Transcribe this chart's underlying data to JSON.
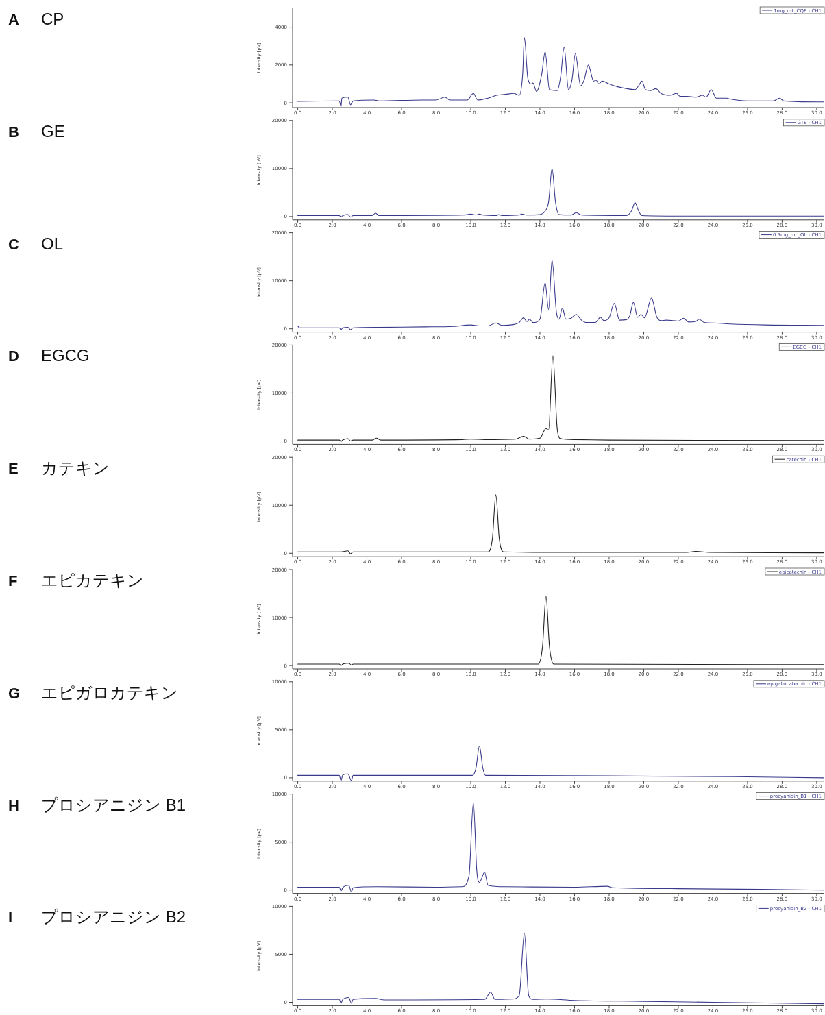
{
  "chart_data": [
    {
      "type": "line",
      "annotations": [
        "A",
        "CP"
      ],
      "ylabel": "Intensity [µV]",
      "legend": "top right",
      "xlim": [
        -0.3,
        30.4
      ],
      "ylim": [
        -250,
        5000
      ],
      "yticks": [
        0,
        2000,
        4000
      ],
      "xticks": [
        {
          "value": 0,
          "label": "0.0"
        },
        {
          "value": 2,
          "label": "2.0"
        },
        {
          "value": 4,
          "label": "4.0"
        },
        {
          "value": 6,
          "label": "6.0"
        },
        {
          "value": 8,
          "label": "8.0"
        },
        {
          "value": 10,
          "label": "10.0"
        },
        {
          "value": 12,
          "label": "12.0"
        },
        {
          "value": 14,
          "label": "14.0"
        },
        {
          "value": 16,
          "label": "16.0"
        },
        {
          "value": 18,
          "label": "18.0"
        },
        {
          "value": 20,
          "label": "20.0"
        },
        {
          "value": 22,
          "label": "22.0"
        },
        {
          "value": 24,
          "label": "24.0"
        },
        {
          "value": 26,
          "label": "26.0"
        },
        {
          "value": 28,
          "label": "28.0"
        },
        {
          "value": 30,
          "label": "30.0"
        }
      ],
      "series": [
        {
          "name": "1mg_mL_CQE - CH1",
          "color": "#3a3a8c",
          "x": [
            0,
            2.4,
            2.5,
            2.55,
            2.9,
            3.05,
            3.2,
            4.4,
            4.7,
            7.2,
            8.0,
            8.5,
            8.8,
            9.8,
            10.15,
            10.4,
            11.0,
            11.5,
            12.0,
            12.5,
            12.8,
            13.0,
            13.1,
            13.3,
            13.5,
            13.6,
            13.8,
            14.1,
            14.3,
            14.55,
            15.0,
            15.2,
            15.4,
            15.65,
            15.85,
            16.05,
            16.35,
            16.55,
            16.8,
            17.1,
            17.25,
            17.4,
            17.6,
            18.0,
            18.5,
            19.5,
            19.7,
            19.9,
            20.1,
            20.4,
            20.7,
            21.0,
            21.5,
            21.9,
            22.1,
            22.5,
            23.0,
            23.4,
            23.6,
            23.9,
            24.2,
            24.8,
            25.0,
            26.0,
            27.5,
            27.85,
            28.1,
            30.0,
            30.4
          ],
          "values": [
            80,
            100,
            -200,
            250,
            300,
            -100,
            100,
            150,
            100,
            150,
            150,
            300,
            150,
            150,
            500,
            150,
            250,
            400,
            450,
            500,
            400,
            1500,
            3450,
            1300,
            1000,
            1050,
            600,
            1500,
            2700,
            700,
            650,
            1400,
            2950,
            700,
            1200,
            2600,
            900,
            1200,
            2000,
            1150,
            1200,
            1000,
            1150,
            1000,
            850,
            700,
            900,
            1150,
            700,
            650,
            750,
            500,
            400,
            500,
            350,
            350,
            300,
            400,
            300,
            700,
            250,
            250,
            200,
            100,
            100,
            250,
            100,
            50,
            50
          ]
        }
      ]
    },
    {
      "type": "line",
      "annotations": [
        "B",
        "GE"
      ],
      "ylabel": "Intensity [µV]",
      "legend": "top right",
      "xlim": [
        -0.3,
        30.4
      ],
      "ylim": [
        -700,
        20000
      ],
      "yticks": [
        0,
        10000,
        20000
      ],
      "xticks": [
        {
          "value": 0,
          "label": "0.0"
        },
        {
          "value": 2,
          "label": "2.0"
        },
        {
          "value": 4,
          "label": "4.0"
        },
        {
          "value": 6,
          "label": "6.0"
        },
        {
          "value": 8,
          "label": "8.0"
        },
        {
          "value": 10,
          "label": "10.0"
        },
        {
          "value": 12,
          "label": "12.0"
        },
        {
          "value": 14,
          "label": "14.0"
        },
        {
          "value": 16,
          "label": "16.0"
        },
        {
          "value": 18,
          "label": "18.0"
        },
        {
          "value": 20,
          "label": "20.0"
        },
        {
          "value": 22,
          "label": "22.0"
        },
        {
          "value": 24,
          "label": "24.0"
        },
        {
          "value": 26,
          "label": "26.0"
        },
        {
          "value": 28,
          "label": "28.0"
        },
        {
          "value": 30,
          "label": "30.0"
        }
      ],
      "series": [
        {
          "name": "GTE - CH1",
          "color": "#3a3a8c",
          "x": [
            0,
            2.4,
            2.5,
            2.6,
            2.9,
            3.05,
            3.2,
            4.3,
            4.5,
            4.7,
            9.6,
            10.0,
            10.3,
            10.5,
            10.7,
            11.5,
            11.6,
            11.8,
            12.8,
            12.95,
            13.2,
            14.0,
            14.35,
            14.5,
            14.7,
            14.9,
            15.1,
            15.8,
            16.1,
            16.4,
            19.0,
            19.3,
            19.5,
            19.7,
            19.9,
            22.0,
            30.4
          ],
          "values": [
            200,
            200,
            -100,
            200,
            400,
            -100,
            200,
            200,
            700,
            200,
            300,
            500,
            300,
            500,
            300,
            200,
            400,
            200,
            300,
            500,
            300,
            400,
            1400,
            3000,
            10000,
            3000,
            400,
            300,
            800,
            300,
            200,
            1200,
            2900,
            1200,
            200,
            100,
            100
          ]
        }
      ]
    },
    {
      "type": "line",
      "annotations": [
        "C",
        "OL"
      ],
      "ylabel": "Intensity [µV]",
      "legend": "top right",
      "xlim": [
        -0.3,
        30.4
      ],
      "ylim": [
        -700,
        20000
      ],
      "yticks": [
        0,
        10000,
        20000
      ],
      "xticks": [
        {
          "value": 0,
          "label": "0.0"
        },
        {
          "value": 2,
          "label": "2.0"
        },
        {
          "value": 4,
          "label": "4.0"
        },
        {
          "value": 6,
          "label": "6.0"
        },
        {
          "value": 8,
          "label": "8.0"
        },
        {
          "value": 10,
          "label": "10.0"
        },
        {
          "value": 12,
          "label": "12.0"
        },
        {
          "value": 14,
          "label": "14.0"
        },
        {
          "value": 16,
          "label": "16.0"
        },
        {
          "value": 18,
          "label": "18.0"
        },
        {
          "value": 20,
          "label": "20.0"
        },
        {
          "value": 22,
          "label": "22.0"
        },
        {
          "value": 24,
          "label": "24.0"
        },
        {
          "value": 26,
          "label": "26.0"
        },
        {
          "value": 28,
          "label": "28.0"
        },
        {
          "value": 30,
          "label": "30.0"
        }
      ],
      "series": [
        {
          "name": "0.5mg_mL_OL - CH1",
          "color": "#3a3a8c",
          "x": [
            0,
            0.1,
            2.4,
            2.5,
            2.6,
            2.9,
            3.05,
            3.2,
            4.5,
            7.3,
            9.0,
            10.0,
            10.5,
            11.0,
            11.45,
            11.8,
            12.5,
            12.8,
            13.05,
            13.25,
            13.4,
            13.6,
            14.0,
            14.3,
            14.5,
            14.7,
            14.95,
            15.1,
            15.3,
            15.5,
            15.8,
            16.1,
            16.4,
            16.7,
            17.2,
            17.5,
            17.7,
            18.0,
            18.3,
            18.6,
            19.0,
            19.2,
            19.4,
            19.65,
            19.85,
            20.05,
            20.45,
            20.75,
            21.0,
            21.3,
            21.7,
            22.0,
            22.3,
            22.6,
            23.0,
            23.2,
            23.5,
            24.0,
            25.0,
            27.0,
            30.4
          ],
          "values": [
            600,
            200,
            200,
            -200,
            200,
            300,
            -200,
            200,
            300,
            400,
            500,
            800,
            600,
            600,
            1200,
            700,
            900,
            1300,
            2300,
            1500,
            2000,
            1300,
            2000,
            9600,
            4000,
            14300,
            3500,
            2000,
            4300,
            2000,
            2200,
            3000,
            1800,
            1300,
            1300,
            2400,
            1700,
            2300,
            5300,
            1800,
            1900,
            2800,
            5500,
            2400,
            3000,
            2300,
            6400,
            2500,
            1700,
            1800,
            1700,
            1600,
            2200,
            1400,
            1500,
            2000,
            1300,
            1200,
            1000,
            800,
            700
          ]
        }
      ]
    },
    {
      "type": "line",
      "annotations": [
        "D",
        "EGCG"
      ],
      "ylabel": "Intensity [µV]",
      "legend": "top right",
      "xlim": [
        -0.3,
        30.4
      ],
      "ylim": [
        -700,
        20000
      ],
      "yticks": [
        0,
        10000,
        20000
      ],
      "xticks": [
        {
          "value": 0,
          "label": "0.0"
        },
        {
          "value": 2,
          "label": "2.0"
        },
        {
          "value": 4,
          "label": "4.0"
        },
        {
          "value": 6,
          "label": "6.0"
        },
        {
          "value": 8,
          "label": "8.0"
        },
        {
          "value": 10,
          "label": "10.0"
        },
        {
          "value": 12,
          "label": "12.0"
        },
        {
          "value": 14,
          "label": "14.0"
        },
        {
          "value": 16,
          "label": "16.0"
        },
        {
          "value": 18,
          "label": "18.0"
        },
        {
          "value": 20,
          "label": "20.0"
        },
        {
          "value": 22,
          "label": "22.0"
        },
        {
          "value": 24,
          "label": "24.0"
        },
        {
          "value": 26,
          "label": "26.0"
        },
        {
          "value": 28,
          "label": "28.0"
        },
        {
          "value": 30,
          "label": "30.0"
        }
      ],
      "series": [
        {
          "name": "EGCG - CH1",
          "color": "#222222",
          "x": [
            0,
            2.4,
            2.5,
            2.6,
            2.9,
            3.05,
            3.2,
            4.3,
            4.55,
            4.8,
            9.5,
            10.0,
            10.8,
            12.6,
            13.05,
            13.4,
            14.0,
            14.35,
            14.5,
            14.75,
            15.0,
            15.2,
            16.0,
            18.0,
            30.4
          ],
          "values": [
            200,
            200,
            -100,
            200,
            500,
            0,
            200,
            200,
            600,
            200,
            300,
            400,
            300,
            400,
            1000,
            400,
            600,
            2600,
            2300,
            17800,
            2500,
            500,
            300,
            200,
            100
          ]
        }
      ]
    },
    {
      "type": "line",
      "annotations": [
        "E",
        "カテキン"
      ],
      "ylabel": "Intensity [µV]",
      "legend": "top right",
      "xlim": [
        -0.3,
        30.4
      ],
      "ylim": [
        -700,
        20000
      ],
      "yticks": [
        0,
        10000,
        20000
      ],
      "xticks": [
        {
          "value": 0,
          "label": "0.0"
        },
        {
          "value": 2,
          "label": "2.0"
        },
        {
          "value": 4,
          "label": "4.0"
        },
        {
          "value": 6,
          "label": "6.0"
        },
        {
          "value": 8,
          "label": "8.0"
        },
        {
          "value": 10,
          "label": "10.0"
        },
        {
          "value": 12,
          "label": "12.0"
        },
        {
          "value": 14,
          "label": "14.0"
        },
        {
          "value": 16,
          "label": "16.0"
        },
        {
          "value": 18,
          "label": "18.0"
        },
        {
          "value": 20,
          "label": "20.0"
        },
        {
          "value": 22,
          "label": "22.0"
        },
        {
          "value": 24,
          "label": "24.0"
        },
        {
          "value": 26,
          "label": "26.0"
        },
        {
          "value": 28,
          "label": "28.0"
        },
        {
          "value": 30,
          "label": "30.0"
        }
      ],
      "series": [
        {
          "name": "catechin - CH1",
          "color": "#222222",
          "x": [
            0,
            2.5,
            2.9,
            3.05,
            3.2,
            11.0,
            11.25,
            11.45,
            11.65,
            11.9,
            16.0,
            22.5,
            23.0,
            23.8,
            30.4
          ],
          "values": [
            300,
            300,
            500,
            -100,
            300,
            300,
            3000,
            12200,
            3000,
            300,
            200,
            200,
            400,
            200,
            100
          ]
        }
      ]
    },
    {
      "type": "line",
      "annotations": [
        "F",
        "エピカテキン"
      ],
      "ylabel": "Intensity [µV]",
      "legend": "top right",
      "xlim": [
        -0.3,
        30.4
      ],
      "ylim": [
        -700,
        20000
      ],
      "yticks": [
        0,
        10000,
        20000
      ],
      "xticks": [
        {
          "value": 0,
          "label": "0.0"
        },
        {
          "value": 2,
          "label": "2.0"
        },
        {
          "value": 4,
          "label": "4.0"
        },
        {
          "value": 6,
          "label": "6.0"
        },
        {
          "value": 8,
          "label": "8.0"
        },
        {
          "value": 10,
          "label": "10.0"
        },
        {
          "value": 12,
          "label": "12.0"
        },
        {
          "value": 14,
          "label": "14.0"
        },
        {
          "value": 16,
          "label": "16.0"
        },
        {
          "value": 18,
          "label": "18.0"
        },
        {
          "value": 20,
          "label": "20.0"
        },
        {
          "value": 22,
          "label": "22.0"
        },
        {
          "value": 24,
          "label": "24.0"
        },
        {
          "value": 26,
          "label": "26.0"
        },
        {
          "value": 28,
          "label": "28.0"
        },
        {
          "value": 30,
          "label": "30.0"
        }
      ],
      "series": [
        {
          "name": "epicatechin - CH1",
          "color": "#222222",
          "x": [
            0,
            2.4,
            2.5,
            2.6,
            2.95,
            3.1,
            3.2,
            13.9,
            14.15,
            14.35,
            14.55,
            14.8,
            30.4
          ],
          "values": [
            300,
            300,
            0,
            300,
            500,
            100,
            300,
            300,
            4000,
            14500,
            4000,
            300,
            200
          ]
        }
      ]
    },
    {
      "type": "line",
      "annotations": [
        "G",
        "エピガロカテキン"
      ],
      "ylabel": "Intensity [µV]",
      "legend": "top right",
      "xlim": [
        -0.3,
        30.4
      ],
      "ylim": [
        -350,
        10000
      ],
      "yticks": [
        0,
        5000,
        10000
      ],
      "xticks": [
        {
          "value": 0,
          "label": "0.0"
        },
        {
          "value": 2,
          "label": "2.0"
        },
        {
          "value": 4,
          "label": "4.0"
        },
        {
          "value": 6,
          "label": "6.0"
        },
        {
          "value": 8,
          "label": "8.0"
        },
        {
          "value": 10,
          "label": "10.0"
        },
        {
          "value": 12,
          "label": "12.0"
        },
        {
          "value": 14,
          "label": "14.0"
        },
        {
          "value": 16,
          "label": "16.0"
        },
        {
          "value": 18,
          "label": "18.0"
        },
        {
          "value": 20,
          "label": "20.0"
        },
        {
          "value": 22,
          "label": "22.0"
        },
        {
          "value": 24,
          "label": "24.0"
        },
        {
          "value": 26,
          "label": "26.0"
        },
        {
          "value": 28,
          "label": "28.0"
        },
        {
          "value": 30,
          "label": "30.0"
        }
      ],
      "series": [
        {
          "name": "epigallocatechin - CH1",
          "color": "#3a3a8c",
          "x": [
            0,
            2.4,
            2.5,
            2.6,
            2.9,
            3.1,
            3.2,
            10.1,
            10.3,
            10.5,
            10.7,
            10.85,
            18.0,
            26.0,
            30.4
          ],
          "values": [
            250,
            250,
            -300,
            300,
            400,
            -300,
            250,
            250,
            1000,
            3300,
            1000,
            250,
            200,
            100,
            0
          ]
        }
      ]
    },
    {
      "type": "line",
      "annotations": [
        "H",
        "プロシアニジン B1"
      ],
      "ylabel": "Intensity [µV]",
      "legend": "top right",
      "xlim": [
        -0.3,
        30.4
      ],
      "ylim": [
        -350,
        10000
      ],
      "yticks": [
        0,
        5000,
        10000
      ],
      "xticks": [
        {
          "value": 0,
          "label": "0.0"
        },
        {
          "value": 2,
          "label": "2.0"
        },
        {
          "value": 4,
          "label": "4.0"
        },
        {
          "value": 6,
          "label": "6.0"
        },
        {
          "value": 8,
          "label": "8.0"
        },
        {
          "value": 10,
          "label": "10.0"
        },
        {
          "value": 12,
          "label": "12.0"
        },
        {
          "value": 14,
          "label": "14.0"
        },
        {
          "value": 16,
          "label": "16.0"
        },
        {
          "value": 18,
          "label": "18.0"
        },
        {
          "value": 20,
          "label": "20.0"
        },
        {
          "value": 22,
          "label": "22.0"
        },
        {
          "value": 24,
          "label": "24.0"
        },
        {
          "value": 26,
          "label": "26.0"
        },
        {
          "value": 28,
          "label": "28.0"
        },
        {
          "value": 30,
          "label": "30.0"
        }
      ],
      "series": [
        {
          "name": "procyanidin_B1 - CH1",
          "color": "#3a3a8c",
          "x": [
            0,
            2.4,
            2.5,
            2.6,
            2.95,
            3.1,
            3.2,
            4.6,
            8.0,
            9.5,
            9.9,
            10.15,
            10.35,
            10.5,
            10.8,
            11.0,
            12.0,
            16.0,
            17.9,
            18.2,
            22.0,
            30.4
          ],
          "values": [
            300,
            300,
            -100,
            250,
            500,
            -200,
            250,
            350,
            300,
            350,
            1500,
            9100,
            2000,
            800,
            1850,
            500,
            350,
            300,
            400,
            250,
            150,
            0
          ]
        }
      ]
    },
    {
      "type": "line",
      "annotations": [
        "I",
        "プロシアニジン B2"
      ],
      "ylabel": "Intensity [µV]",
      "legend": "top right",
      "xlim": [
        -0.3,
        30.4
      ],
      "ylim": [
        -350,
        10000
      ],
      "yticks": [
        0,
        5000,
        10000
      ],
      "xticks": [
        {
          "value": 0,
          "label": "0.0"
        },
        {
          "value": 2,
          "label": "2.0"
        },
        {
          "value": 4,
          "label": "4.0"
        },
        {
          "value": 6,
          "label": "6.0"
        },
        {
          "value": 8,
          "label": "8.0"
        },
        {
          "value": 10,
          "label": "10.0"
        },
        {
          "value": 12,
          "label": "12.0"
        },
        {
          "value": 14,
          "label": "14.0"
        },
        {
          "value": 16,
          "label": "16.0"
        },
        {
          "value": 18,
          "label": "18.0"
        },
        {
          "value": 20,
          "label": "20.0"
        },
        {
          "value": 22,
          "label": "22.0"
        },
        {
          "value": 24,
          "label": "24.0"
        },
        {
          "value": 26,
          "label": "26.0"
        },
        {
          "value": 28,
          "label": "28.0"
        },
        {
          "value": 30,
          "label": "30.0"
        }
      ],
      "series": [
        {
          "name": "procyanidin_B2 - CH1",
          "color": "#3a3a8c",
          "x": [
            0,
            2.4,
            2.5,
            2.6,
            2.95,
            3.1,
            3.2,
            4.5,
            5.0,
            10.8,
            11.15,
            11.4,
            12.4,
            12.8,
            13.1,
            13.35,
            13.6,
            14.4,
            16.0,
            20.0,
            24.0,
            30.4
          ],
          "values": [
            300,
            300,
            -100,
            300,
            500,
            -100,
            300,
            400,
            250,
            300,
            1050,
            300,
            350,
            700,
            7200,
            700,
            300,
            350,
            200,
            100,
            0,
            -150
          ]
        }
      ]
    }
  ]
}
